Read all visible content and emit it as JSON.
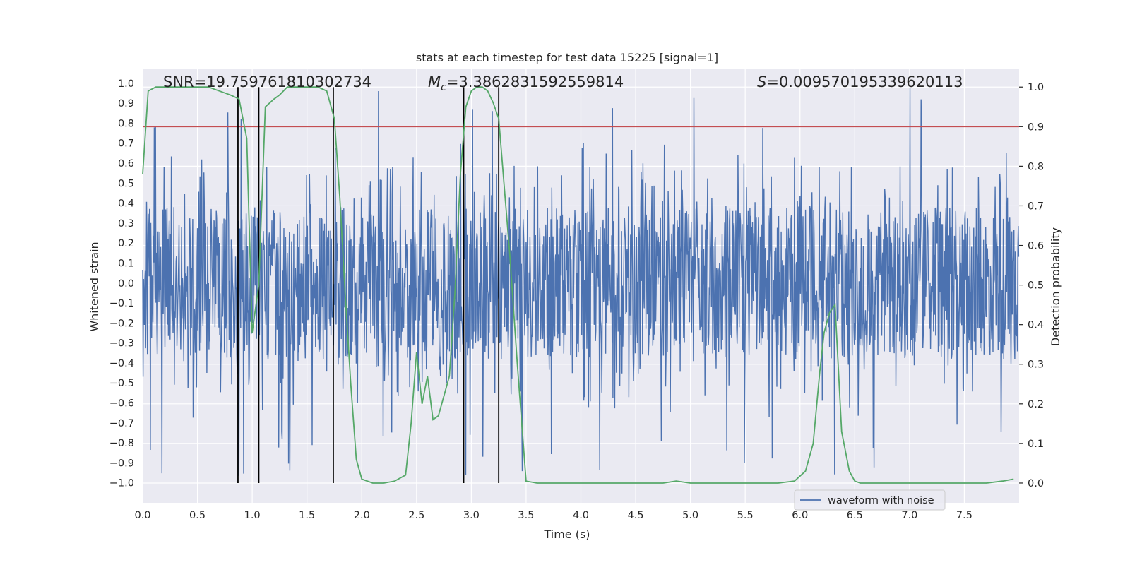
{
  "chart_data": {
    "type": "line",
    "title": "stats at each timestep for test data 15225 [signal=1]",
    "xlabel": "Time (s)",
    "ylabel": "Whitened strain",
    "ylabel_right": "Detection probability",
    "xlim": [
      0.0,
      8.0
    ],
    "ylim": [
      -1.1,
      1.07
    ],
    "ylim_right": [
      -0.05,
      1.045
    ],
    "x_ticks": [
      "0.0",
      "0.5",
      "1.0",
      "1.5",
      "2.0",
      "2.5",
      "3.0",
      "3.5",
      "4.0",
      "4.5",
      "5.0",
      "5.5",
      "6.0",
      "6.5",
      "7.0",
      "7.5"
    ],
    "x_tick_values": [
      0.0,
      0.5,
      1.0,
      1.5,
      2.0,
      2.5,
      3.0,
      3.5,
      4.0,
      4.5,
      5.0,
      5.5,
      6.0,
      6.5,
      7.0,
      7.5
    ],
    "y_ticks": [
      "1.0",
      "0.9",
      "0.8",
      "0.7",
      "0.6",
      "0.5",
      "0.4",
      "0.3",
      "0.2",
      "0.1",
      "0.0",
      "−0.1",
      "−0.2",
      "−0.3",
      "−0.4",
      "−0.5",
      "−0.6",
      "−0.7",
      "−0.8",
      "−0.9",
      "−1.0"
    ],
    "y_tick_values": [
      1.0,
      0.9,
      0.8,
      0.7,
      0.6,
      0.5,
      0.4,
      0.3,
      0.2,
      0.1,
      0.0,
      -0.1,
      -0.2,
      -0.3,
      -0.4,
      -0.5,
      -0.6,
      -0.7,
      -0.8,
      -0.9,
      -1.0
    ],
    "y_ticks_right": [
      "1.0",
      "0.9",
      "0.8",
      "0.7",
      "0.6",
      "0.5",
      "0.4",
      "0.3",
      "0.2",
      "0.1",
      "0.0"
    ],
    "y_tick_values_right": [
      1.0,
      0.9,
      0.8,
      0.7,
      0.6,
      0.5,
      0.4,
      0.3,
      0.2,
      0.1,
      0.0
    ],
    "annotations": {
      "snr": "SNR=19.759761810302734",
      "mc_symbol": "M",
      "mc_subscript": "c",
      "mc_value": "=3.3862831592559814",
      "s_symbol": "S",
      "s_value": "=0.009570195339620113"
    },
    "legend": {
      "label": "waveform with noise",
      "position": "lower-right"
    },
    "waveform": {
      "name": "waveform with noise",
      "color": "#4c72b0",
      "n_samples": 2048,
      "dense_amplitude": 0.38,
      "spike_max": 1.0
    },
    "threshold": {
      "value": 0.9,
      "color": "#c44e52"
    },
    "event_lines_x": [
      0.87,
      1.06,
      1.74,
      2.93,
      3.25
    ],
    "detection_probability": {
      "name": "Detection probability",
      "color": "#55a868",
      "x": [
        0.0,
        0.05,
        0.12,
        0.2,
        0.3,
        0.4,
        0.5,
        0.6,
        0.7,
        0.8,
        0.88,
        0.95,
        1.0,
        1.06,
        1.12,
        1.2,
        1.25,
        1.32,
        1.4,
        1.5,
        1.6,
        1.68,
        1.75,
        1.8,
        1.85,
        1.9,
        1.95,
        2.0,
        2.1,
        2.2,
        2.3,
        2.4,
        2.45,
        2.5,
        2.55,
        2.6,
        2.65,
        2.7,
        2.75,
        2.8,
        2.85,
        2.9,
        2.95,
        3.0,
        3.05,
        3.1,
        3.15,
        3.2,
        3.25,
        3.3,
        3.35,
        3.42,
        3.5,
        3.6,
        3.8,
        4.0,
        4.2,
        4.5,
        4.75,
        4.87,
        5.0,
        5.2,
        5.4,
        5.6,
        5.8,
        5.95,
        6.05,
        6.12,
        6.18,
        6.22,
        6.27,
        6.32,
        6.38,
        6.45,
        6.5,
        6.55,
        6.7,
        7.0,
        7.3,
        7.5,
        7.7,
        7.85,
        7.95
      ],
      "y": [
        0.78,
        0.99,
        1.0,
        1.0,
        1.0,
        1.0,
        1.0,
        1.0,
        0.99,
        0.98,
        0.97,
        0.87,
        0.38,
        0.5,
        0.95,
        0.97,
        0.98,
        1.0,
        1.0,
        1.0,
        1.0,
        0.99,
        0.92,
        0.72,
        0.47,
        0.25,
        0.06,
        0.01,
        0.0,
        0.0,
        0.005,
        0.02,
        0.15,
        0.33,
        0.2,
        0.27,
        0.16,
        0.17,
        0.22,
        0.27,
        0.48,
        0.78,
        0.95,
        0.99,
        1.0,
        1.0,
        0.99,
        0.96,
        0.92,
        0.75,
        0.58,
        0.3,
        0.005,
        0.0,
        0.0,
        0.0,
        0.0,
        0.0,
        0.0,
        0.005,
        0.0,
        0.0,
        0.0,
        0.0,
        0.0,
        0.005,
        0.03,
        0.1,
        0.28,
        0.38,
        0.43,
        0.45,
        0.13,
        0.03,
        0.005,
        0.0,
        0.0,
        0.0,
        0.0,
        0.0,
        0.0,
        0.005,
        0.01
      ]
    }
  }
}
